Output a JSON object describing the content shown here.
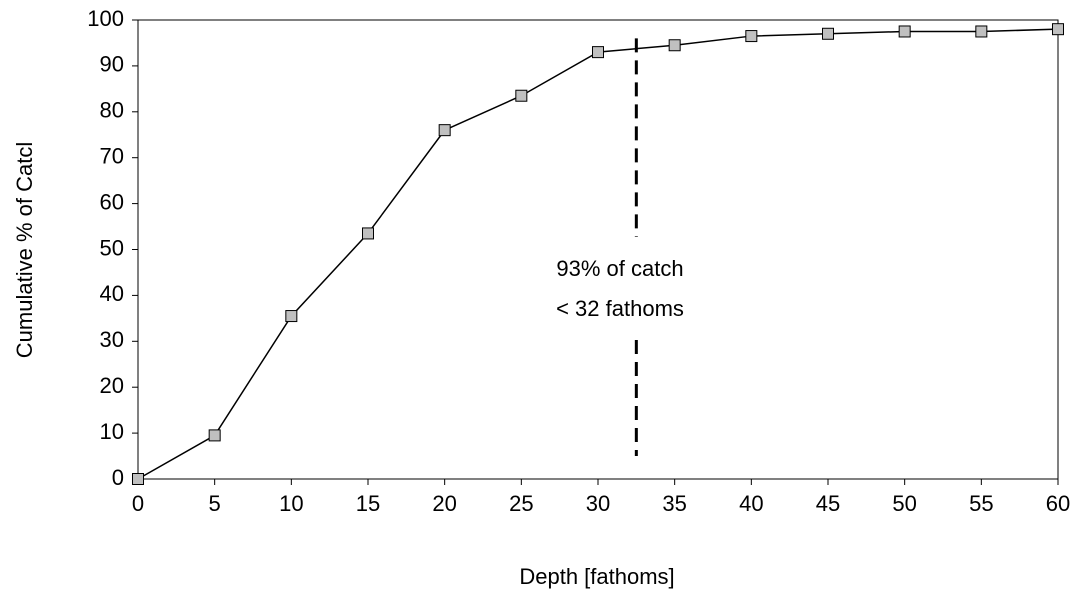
{
  "chart_data": {
    "type": "line",
    "x_label": "Depth [fathoms]",
    "y_label": "Cumulative % of Catcl",
    "x": [
      0,
      5,
      10,
      15,
      20,
      25,
      30,
      35,
      40,
      45,
      50,
      55,
      60
    ],
    "series": [
      {
        "color": "#000000",
        "marker_color": "#c0c0c0",
        "values": [
          0,
          9.5,
          35.5,
          53.5,
          76,
          83.5,
          93,
          94.5,
          96.5,
          97,
          97.5,
          97.5,
          98
        ]
      }
    ],
    "xlim": [
      0,
      60
    ],
    "xticks": [
      0,
      5,
      10,
      15,
      20,
      25,
      30,
      35,
      40,
      45,
      50,
      55,
      60
    ],
    "ylim": [
      0,
      100
    ],
    "yticks": [
      0,
      10,
      20,
      30,
      40,
      50,
      60,
      70,
      80,
      90,
      100
    ],
    "grid": false,
    "reference_line": {
      "x": 32.5,
      "y": [
        5,
        96
      ],
      "style": "dashed"
    },
    "annotation": [
      "93% of catch",
      "< 32 fathoms"
    ]
  }
}
